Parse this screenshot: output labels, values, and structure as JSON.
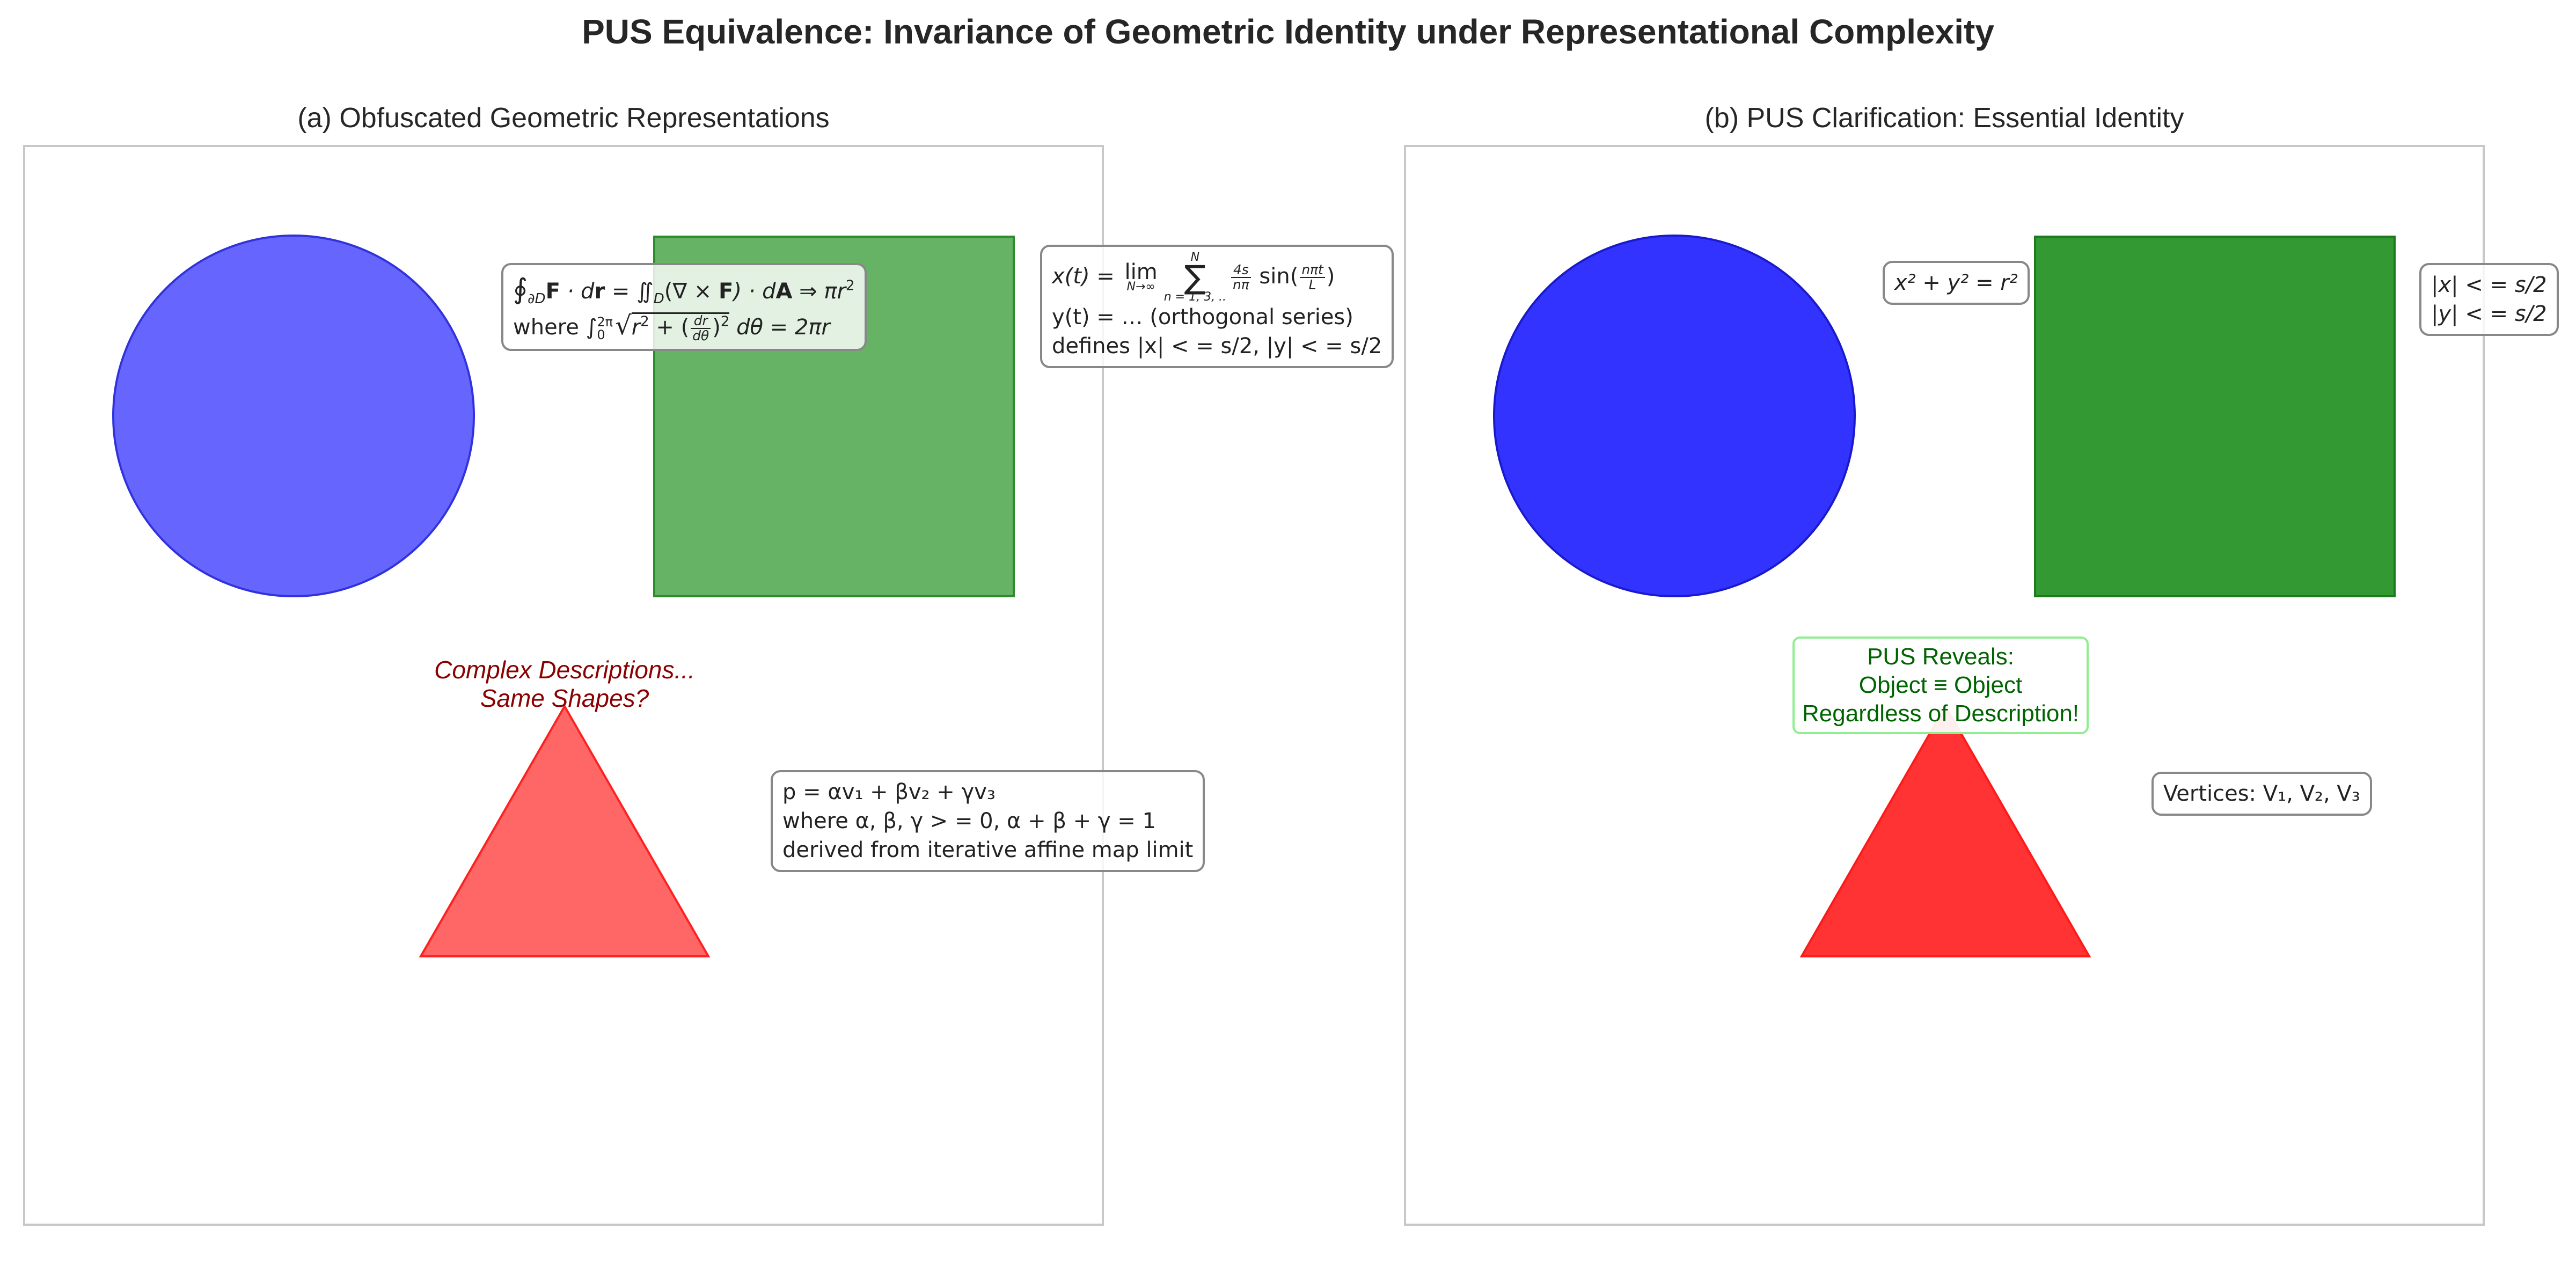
{
  "figure": {
    "title": "PUS Equivalence: Invariance of Geometric Identity under Representational Complexity"
  },
  "panel_a": {
    "title": "(a) Obfuscated Geometric Representations",
    "warning_line1": "Complex Descriptions...",
    "warning_line2": "Same Shapes?",
    "circle_anno": {
      "l1_a": "∮",
      "l1_b": "∂D",
      "l1_c": "F",
      "l1_d": " · d",
      "l1_e": "r",
      "l1_f": " = ∬",
      "l1_g": "D",
      "l1_h": "(∇ × ",
      "l1_i": "F",
      "l1_j": ") · d",
      "l1_k": "A",
      "l1_l": " ⇒ πr",
      "l1_m": "2",
      "l2_a": "where ∫",
      "l2_b": "2π",
      "l2_c": "0",
      "l2_d": "r",
      "l2_e": "2",
      "l2_f": " + (",
      "l2_g": "dr",
      "l2_h": "dθ",
      "l2_i": ")",
      "l2_j": "2",
      "l2_k": " dθ = 2πr"
    },
    "square_anno": {
      "l1_a": "x(t) = ",
      "l1_lim": "lim",
      "l1_limsub": "N→∞",
      "l1_sumtop": "N",
      "l1_sumbot": "n = 1, 3, ..",
      "l1_fnum": "4s",
      "l1_fden": "nπ",
      "l1_sin": " sin(",
      "l1_snum": "nπt",
      "l1_sden": "L",
      "l1_close": ")",
      "l2": "y(t) = … (orthogonal series)",
      "l3": "defines |x| < = s/2, |y| < = s/2"
    },
    "triangle_anno": {
      "l1": "p = αv₁ + βv₂ + γv₃",
      "l2": "where α, β, γ > = 0, α + β + γ = 1",
      "l3": "derived from iterative affine map limit"
    }
  },
  "panel_b": {
    "title": "(b) PUS Clarification: Essential Identity",
    "circle_anno": "x² + y² = r²",
    "square_anno_l1": "|x| < = s/2",
    "square_anno_l2": "|y| < = s/2",
    "triangle_anno": "Vertices: V₁, V₂, V₃",
    "reveal_l1": "PUS Reveals:",
    "reveal_l2": "Object  ≡  Object",
    "reveal_l3": "Regardless of Description!"
  },
  "colors": {
    "circle_a": "#6666ff",
    "square_a": "#66b366",
    "triangle_a": "#ff6666",
    "circle_b": "#3333ff",
    "square_b": "#339933",
    "triangle_b": "#ff3333",
    "frame": "#c8c8c8"
  }
}
